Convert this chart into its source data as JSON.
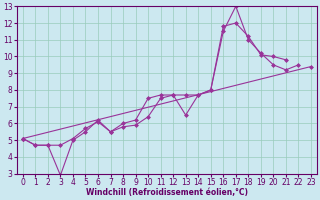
{
  "xlabel": "Windchill (Refroidissement éolien,°C)",
  "bg_color": "#cce8f0",
  "grid_color": "#99ccbb",
  "line_color": "#993399",
  "spine_color": "#660066",
  "xlim": [
    -0.5,
    23.5
  ],
  "ylim": [
    3,
    13
  ],
  "xticks": [
    0,
    1,
    2,
    3,
    4,
    5,
    6,
    7,
    8,
    9,
    10,
    11,
    12,
    13,
    14,
    15,
    16,
    17,
    18,
    19,
    20,
    21,
    22,
    23
  ],
  "yticks": [
    3,
    4,
    5,
    6,
    7,
    8,
    9,
    10,
    11,
    12,
    13
  ],
  "line1_x": [
    0,
    1,
    2,
    3,
    4,
    5,
    6,
    7,
    8,
    9,
    10,
    11,
    12,
    13,
    14,
    15,
    16,
    17,
    18,
    19,
    20,
    21,
    22
  ],
  "line1_y": [
    5.1,
    4.7,
    4.7,
    4.7,
    5.1,
    5.7,
    6.1,
    5.5,
    6.0,
    6.2,
    7.5,
    7.7,
    7.7,
    6.5,
    7.7,
    8.0,
    11.5,
    13.0,
    11.0,
    10.2,
    9.5,
    9.2,
    9.5
  ],
  "line2_x": [
    0,
    1,
    2,
    3,
    4,
    5,
    6,
    7,
    8,
    9,
    10,
    11,
    12,
    13,
    14,
    15,
    16,
    17,
    18,
    19,
    20,
    21
  ],
  "line2_y": [
    5.1,
    4.7,
    4.7,
    2.9,
    5.0,
    5.5,
    6.2,
    5.5,
    5.8,
    5.9,
    6.4,
    7.5,
    7.7,
    7.7,
    7.7,
    8.0,
    11.8,
    12.0,
    11.2,
    10.1,
    10.0,
    9.8
  ],
  "line3_x": [
    0,
    23
  ],
  "line3_y": [
    5.1,
    9.4
  ],
  "marker": "D",
  "markersize": 2.0,
  "linewidth": 0.8,
  "tick_fontsize": 5.5,
  "xlabel_fontsize": 5.5
}
